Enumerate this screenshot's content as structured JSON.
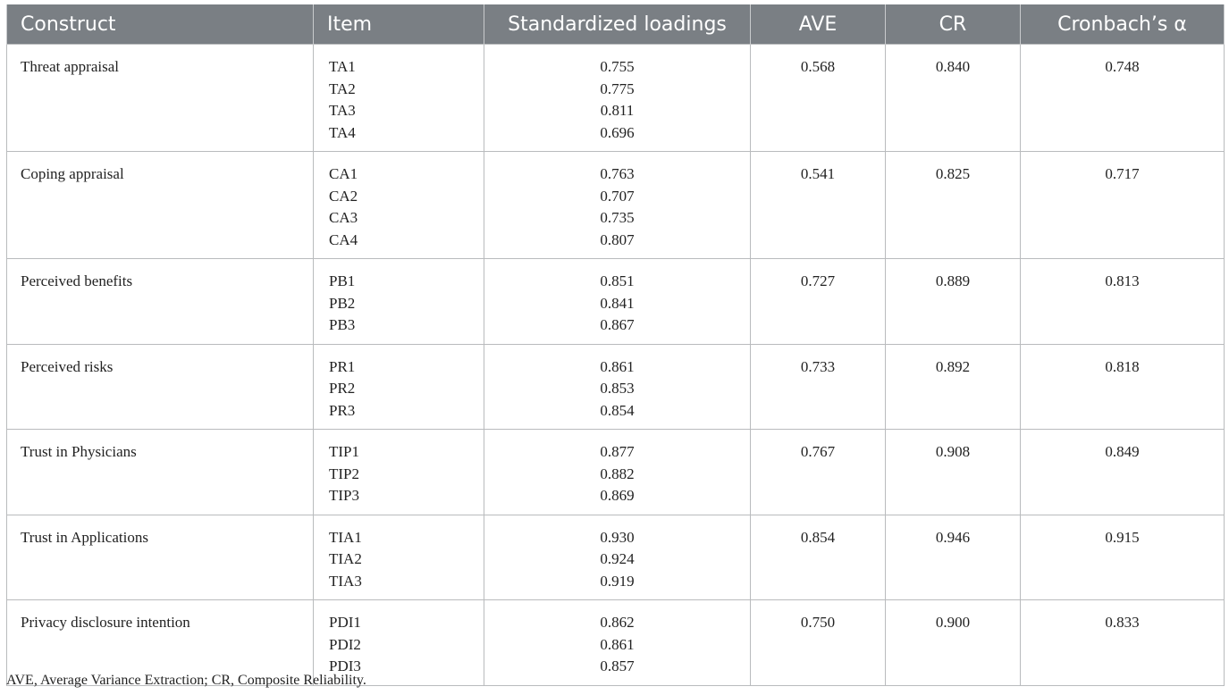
{
  "headers": {
    "construct": "Construct",
    "item": "Item",
    "loadings": "Standardized loadings",
    "ave": "AVE",
    "cr": "CR",
    "alpha": "Cronbach’s α"
  },
  "rows": [
    {
      "construct": "Threat appraisal",
      "items": [
        "TA1",
        "TA2",
        "TA3",
        "TA4"
      ],
      "loadings": [
        "0.755",
        "0.775",
        "0.811",
        "0.696"
      ],
      "ave": "0.568",
      "cr": "0.840",
      "alpha": "0.748"
    },
    {
      "construct": "Coping appraisal",
      "items": [
        "CA1",
        "CA2",
        "CA3",
        "CA4"
      ],
      "loadings": [
        "0.763",
        "0.707",
        "0.735",
        "0.807"
      ],
      "ave": "0.541",
      "cr": "0.825",
      "alpha": "0.717"
    },
    {
      "construct": "Perceived benefits",
      "items": [
        "PB1",
        "PB2",
        "PB3"
      ],
      "loadings": [
        "0.851",
        "0.841",
        "0.867"
      ],
      "ave": "0.727",
      "cr": "0.889",
      "alpha": "0.813"
    },
    {
      "construct": "Perceived risks",
      "items": [
        "PR1",
        "PR2",
        "PR3"
      ],
      "loadings": [
        "0.861",
        "0.853",
        "0.854"
      ],
      "ave": "0.733",
      "cr": "0.892",
      "alpha": "0.818"
    },
    {
      "construct": "Trust in Physicians",
      "items": [
        "TIP1",
        "TIP2",
        "TIP3"
      ],
      "loadings": [
        "0.877",
        "0.882",
        "0.869"
      ],
      "ave": "0.767",
      "cr": "0.908",
      "alpha": "0.849"
    },
    {
      "construct": "Trust in Applications",
      "items": [
        "TIA1",
        "TIA2",
        "TIA3"
      ],
      "loadings": [
        "0.930",
        "0.924",
        "0.919"
      ],
      "ave": "0.854",
      "cr": "0.946",
      "alpha": "0.915"
    },
    {
      "construct": "Privacy disclosure intention",
      "items": [
        "PDI1",
        "PDI2",
        "PDI3"
      ],
      "loadings": [
        "0.862",
        "0.861",
        "0.857"
      ],
      "ave": "0.750",
      "cr": "0.900",
      "alpha": "0.833"
    }
  ],
  "footnote": "AVE, Average Variance Extraction; CR, Composite Reliability.",
  "colors": {
    "header_bg": "#7a7f84",
    "header_text": "#ffffff",
    "border": "#b9bbbd"
  }
}
